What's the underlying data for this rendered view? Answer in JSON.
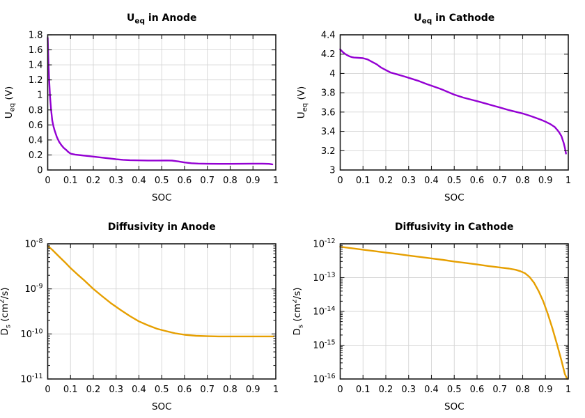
{
  "page": {
    "background": "#ffffff"
  },
  "style": {
    "grid_color": "#d4d4d4",
    "border_color": "#1a1a1a",
    "tick_color": "#1a1a1a",
    "text_color": "#000000",
    "curve_purple": "#9400d3",
    "curve_orange": "#e69f00"
  },
  "chart_data": [
    {
      "id": "ueq-anode",
      "type": "line",
      "title": [
        {
          "t": "U"
        },
        {
          "t": "eq",
          "sub": true
        },
        {
          "t": " in Anode"
        }
      ],
      "xlabel": "SOC",
      "ylabel": [
        {
          "t": "U"
        },
        {
          "t": "eq",
          "sub": true
        },
        {
          "t": " (V)"
        }
      ],
      "xscale": "linear",
      "yscale": "linear",
      "xlim": [
        0,
        1
      ],
      "ylim": [
        0,
        1.8
      ],
      "grid": true,
      "legend": "none",
      "x_ticks": [
        {
          "v": 0,
          "label": "0"
        },
        {
          "v": 0.1,
          "label": "0.1"
        },
        {
          "v": 0.2,
          "label": "0.2"
        },
        {
          "v": 0.3,
          "label": "0.3"
        },
        {
          "v": 0.4,
          "label": "0.4"
        },
        {
          "v": 0.5,
          "label": "0.5"
        },
        {
          "v": 0.6,
          "label": "0.6"
        },
        {
          "v": 0.7,
          "label": "0.7"
        },
        {
          "v": 0.8,
          "label": "0.8"
        },
        {
          "v": 0.9,
          "label": "0.9"
        },
        {
          "v": 1,
          "label": "1"
        }
      ],
      "y_ticks": [
        {
          "v": 0,
          "label": "0"
        },
        {
          "v": 0.2,
          "label": "0.2"
        },
        {
          "v": 0.4,
          "label": "0.4"
        },
        {
          "v": 0.6,
          "label": "0.6"
        },
        {
          "v": 0.8,
          "label": "0.8"
        },
        {
          "v": 1,
          "label": "1"
        },
        {
          "v": 1.2,
          "label": "1.2"
        },
        {
          "v": 1.4,
          "label": "1.4"
        },
        {
          "v": 1.6,
          "label": "1.6"
        },
        {
          "v": 1.8,
          "label": "1.8"
        }
      ],
      "color": "#9400d3",
      "points": [
        [
          0,
          1.76
        ],
        [
          0.003,
          1.45
        ],
        [
          0.006,
          1.22
        ],
        [
          0.01,
          0.98
        ],
        [
          0.015,
          0.8
        ],
        [
          0.02,
          0.66
        ],
        [
          0.025,
          0.585
        ],
        [
          0.03,
          0.53
        ],
        [
          0.04,
          0.44
        ],
        [
          0.05,
          0.375
        ],
        [
          0.06,
          0.33
        ],
        [
          0.07,
          0.295
        ],
        [
          0.08,
          0.27
        ],
        [
          0.09,
          0.24
        ],
        [
          0.1,
          0.218
        ],
        [
          0.12,
          0.205
        ],
        [
          0.15,
          0.195
        ],
        [
          0.18,
          0.185
        ],
        [
          0.2,
          0.178
        ],
        [
          0.23,
          0.168
        ],
        [
          0.26,
          0.158
        ],
        [
          0.3,
          0.143
        ],
        [
          0.33,
          0.135
        ],
        [
          0.36,
          0.131
        ],
        [
          0.4,
          0.128
        ],
        [
          0.44,
          0.126
        ],
        [
          0.48,
          0.126
        ],
        [
          0.52,
          0.127
        ],
        [
          0.545,
          0.125
        ],
        [
          0.57,
          0.115
        ],
        [
          0.6,
          0.1
        ],
        [
          0.63,
          0.09
        ],
        [
          0.66,
          0.085
        ],
        [
          0.7,
          0.083
        ],
        [
          0.75,
          0.082
        ],
        [
          0.8,
          0.082
        ],
        [
          0.85,
          0.083
        ],
        [
          0.9,
          0.084
        ],
        [
          0.94,
          0.084
        ],
        [
          0.97,
          0.082
        ],
        [
          0.985,
          0.075
        ]
      ]
    },
    {
      "id": "ueq-cathode",
      "type": "line",
      "title": [
        {
          "t": "U"
        },
        {
          "t": "eq",
          "sub": true
        },
        {
          "t": " in Cathode"
        }
      ],
      "xlabel": "SOC",
      "ylabel": [
        {
          "t": "U"
        },
        {
          "t": "eq",
          "sub": true
        },
        {
          "t": " (V)"
        }
      ],
      "xscale": "linear",
      "yscale": "linear",
      "xlim": [
        0,
        1
      ],
      "ylim": [
        3,
        4.4
      ],
      "grid": true,
      "legend": "none",
      "x_ticks": [
        {
          "v": 0,
          "label": "0"
        },
        {
          "v": 0.1,
          "label": "0.1"
        },
        {
          "v": 0.2,
          "label": "0.2"
        },
        {
          "v": 0.3,
          "label": "0.3"
        },
        {
          "v": 0.4,
          "label": "0.4"
        },
        {
          "v": 0.5,
          "label": "0.5"
        },
        {
          "v": 0.6,
          "label": "0.6"
        },
        {
          "v": 0.7,
          "label": "0.7"
        },
        {
          "v": 0.8,
          "label": "0.8"
        },
        {
          "v": 0.9,
          "label": "0.9"
        },
        {
          "v": 1,
          "label": "1"
        }
      ],
      "y_ticks": [
        {
          "v": 3,
          "label": "3"
        },
        {
          "v": 3.2,
          "label": "3.2"
        },
        {
          "v": 3.4,
          "label": "3.4"
        },
        {
          "v": 3.6,
          "label": "3.6"
        },
        {
          "v": 3.8,
          "label": "3.8"
        },
        {
          "v": 4,
          "label": "4"
        },
        {
          "v": 4.2,
          "label": "4.2"
        },
        {
          "v": 4.4,
          "label": "4.4"
        }
      ],
      "color": "#9400d3",
      "points": [
        [
          0,
          4.25
        ],
        [
          0.01,
          4.225
        ],
        [
          0.02,
          4.205
        ],
        [
          0.03,
          4.19
        ],
        [
          0.04,
          4.178
        ],
        [
          0.05,
          4.17
        ],
        [
          0.06,
          4.165
        ],
        [
          0.08,
          4.162
        ],
        [
          0.1,
          4.158
        ],
        [
          0.12,
          4.145
        ],
        [
          0.14,
          4.12
        ],
        [
          0.16,
          4.095
        ],
        [
          0.18,
          4.06
        ],
        [
          0.2,
          4.035
        ],
        [
          0.22,
          4.01
        ],
        [
          0.25,
          3.99
        ],
        [
          0.28,
          3.97
        ],
        [
          0.3,
          3.955
        ],
        [
          0.34,
          3.925
        ],
        [
          0.38,
          3.89
        ],
        [
          0.4,
          3.873
        ],
        [
          0.44,
          3.84
        ],
        [
          0.48,
          3.8
        ],
        [
          0.5,
          3.78
        ],
        [
          0.54,
          3.75
        ],
        [
          0.58,
          3.725
        ],
        [
          0.6,
          3.713
        ],
        [
          0.64,
          3.687
        ],
        [
          0.68,
          3.66
        ],
        [
          0.7,
          3.647
        ],
        [
          0.74,
          3.62
        ],
        [
          0.78,
          3.597
        ],
        [
          0.8,
          3.585
        ],
        [
          0.84,
          3.555
        ],
        [
          0.88,
          3.52
        ],
        [
          0.9,
          3.5
        ],
        [
          0.92,
          3.477
        ],
        [
          0.94,
          3.447
        ],
        [
          0.95,
          3.42
        ],
        [
          0.96,
          3.39
        ],
        [
          0.97,
          3.35
        ],
        [
          0.98,
          3.28
        ],
        [
          0.985,
          3.23
        ],
        [
          0.99,
          3.17
        ]
      ]
    },
    {
      "id": "diffusivity-anode",
      "type": "line",
      "title": [
        {
          "t": "Diffusivity in Anode"
        }
      ],
      "xlabel": "SOC",
      "ylabel": [
        {
          "t": "D"
        },
        {
          "t": "s",
          "sub": true
        },
        {
          "t": " (cm"
        },
        {
          "t": "2",
          "sup": true
        },
        {
          "t": "/s)"
        }
      ],
      "xscale": "linear",
      "yscale": "log",
      "xlim": [
        0,
        1
      ],
      "ylim": [
        1e-11,
        1e-08
      ],
      "grid": true,
      "legend": "none",
      "x_ticks": [
        {
          "v": 0,
          "label": "0"
        },
        {
          "v": 0.1,
          "label": "0.1"
        },
        {
          "v": 0.2,
          "label": "0.2"
        },
        {
          "v": 0.3,
          "label": "0.3"
        },
        {
          "v": 0.4,
          "label": "0.4"
        },
        {
          "v": 0.5,
          "label": "0.5"
        },
        {
          "v": 0.6,
          "label": "0.6"
        },
        {
          "v": 0.7,
          "label": "0.7"
        },
        {
          "v": 0.8,
          "label": "0.8"
        },
        {
          "v": 0.9,
          "label": "0.9"
        },
        {
          "v": 1,
          "label": "1"
        }
      ],
      "y_ticks": [
        {
          "exp": -11
        },
        {
          "exp": -10
        },
        {
          "exp": -9
        },
        {
          "exp": -8
        }
      ],
      "color": "#e69f00",
      "points": [
        [
          0,
          9e-09
        ],
        [
          0.02,
          7.4e-09
        ],
        [
          0.05,
          5.2e-09
        ],
        [
          0.08,
          3.7e-09
        ],
        [
          0.1,
          2.9e-09
        ],
        [
          0.13,
          2.1e-09
        ],
        [
          0.16,
          1.55e-09
        ],
        [
          0.2,
          1e-09
        ],
        [
          0.24,
          6.8e-10
        ],
        [
          0.28,
          4.7e-10
        ],
        [
          0.32,
          3.4e-10
        ],
        [
          0.36,
          2.5e-10
        ],
        [
          0.4,
          1.9e-10
        ],
        [
          0.44,
          1.55e-10
        ],
        [
          0.48,
          1.3e-10
        ],
        [
          0.52,
          1.15e-10
        ],
        [
          0.56,
          1.03e-10
        ],
        [
          0.6,
          9.6e-11
        ],
        [
          0.65,
          9.1e-11
        ],
        [
          0.7,
          8.9e-11
        ],
        [
          0.75,
          8.8e-11
        ],
        [
          0.8,
          8.8e-11
        ],
        [
          0.85,
          8.8e-11
        ],
        [
          0.9,
          8.8e-11
        ],
        [
          0.95,
          8.8e-11
        ],
        [
          0.99,
          8.8e-11
        ]
      ]
    },
    {
      "id": "diffusivity-cathode",
      "type": "line",
      "title": [
        {
          "t": "Diffusivity in Cathode"
        }
      ],
      "xlabel": "SOC",
      "ylabel": [
        {
          "t": "D"
        },
        {
          "t": "s",
          "sub": true
        },
        {
          "t": " (cm"
        },
        {
          "t": "2",
          "sup": true
        },
        {
          "t": "/s)"
        }
      ],
      "xscale": "linear",
      "yscale": "log",
      "xlim": [
        0,
        1
      ],
      "ylim": [
        1e-16,
        1e-12
      ],
      "grid": true,
      "legend": "none",
      "x_ticks": [
        {
          "v": 0,
          "label": "0"
        },
        {
          "v": 0.1,
          "label": "0.1"
        },
        {
          "v": 0.2,
          "label": "0.2"
        },
        {
          "v": 0.3,
          "label": "0.3"
        },
        {
          "v": 0.4,
          "label": "0.4"
        },
        {
          "v": 0.5,
          "label": "0.5"
        },
        {
          "v": 0.6,
          "label": "0.6"
        },
        {
          "v": 0.7,
          "label": "0.7"
        },
        {
          "v": 0.8,
          "label": "0.8"
        },
        {
          "v": 0.9,
          "label": "0.9"
        },
        {
          "v": 1,
          "label": "1"
        }
      ],
      "y_ticks": [
        {
          "exp": -16
        },
        {
          "exp": -15
        },
        {
          "exp": -14
        },
        {
          "exp": -13
        },
        {
          "exp": -12
        }
      ],
      "color": "#e69f00",
      "points": [
        [
          0,
          8.2e-13
        ],
        [
          0.05,
          7.4e-13
        ],
        [
          0.1,
          6.7e-13
        ],
        [
          0.15,
          6.1e-13
        ],
        [
          0.2,
          5.5e-13
        ],
        [
          0.25,
          5e-13
        ],
        [
          0.3,
          4.5e-13
        ],
        [
          0.35,
          4.1e-13
        ],
        [
          0.4,
          3.7e-13
        ],
        [
          0.45,
          3.35e-13
        ],
        [
          0.5,
          3e-13
        ],
        [
          0.55,
          2.72e-13
        ],
        [
          0.6,
          2.45e-13
        ],
        [
          0.65,
          2.2e-13
        ],
        [
          0.7,
          2e-13
        ],
        [
          0.74,
          1.85e-13
        ],
        [
          0.77,
          1.7e-13
        ],
        [
          0.79,
          1.55e-13
        ],
        [
          0.81,
          1.35e-13
        ],
        [
          0.83,
          1.05e-13
        ],
        [
          0.85,
          7e-14
        ],
        [
          0.87,
          4e-14
        ],
        [
          0.89,
          2e-14
        ],
        [
          0.91,
          8.5e-15
        ],
        [
          0.93,
          3.2e-15
        ],
        [
          0.95,
          1.1e-15
        ],
        [
          0.97,
          3.5e-16
        ],
        [
          0.985,
          1.4e-16
        ],
        [
          0.995,
          1e-16
        ]
      ]
    }
  ]
}
